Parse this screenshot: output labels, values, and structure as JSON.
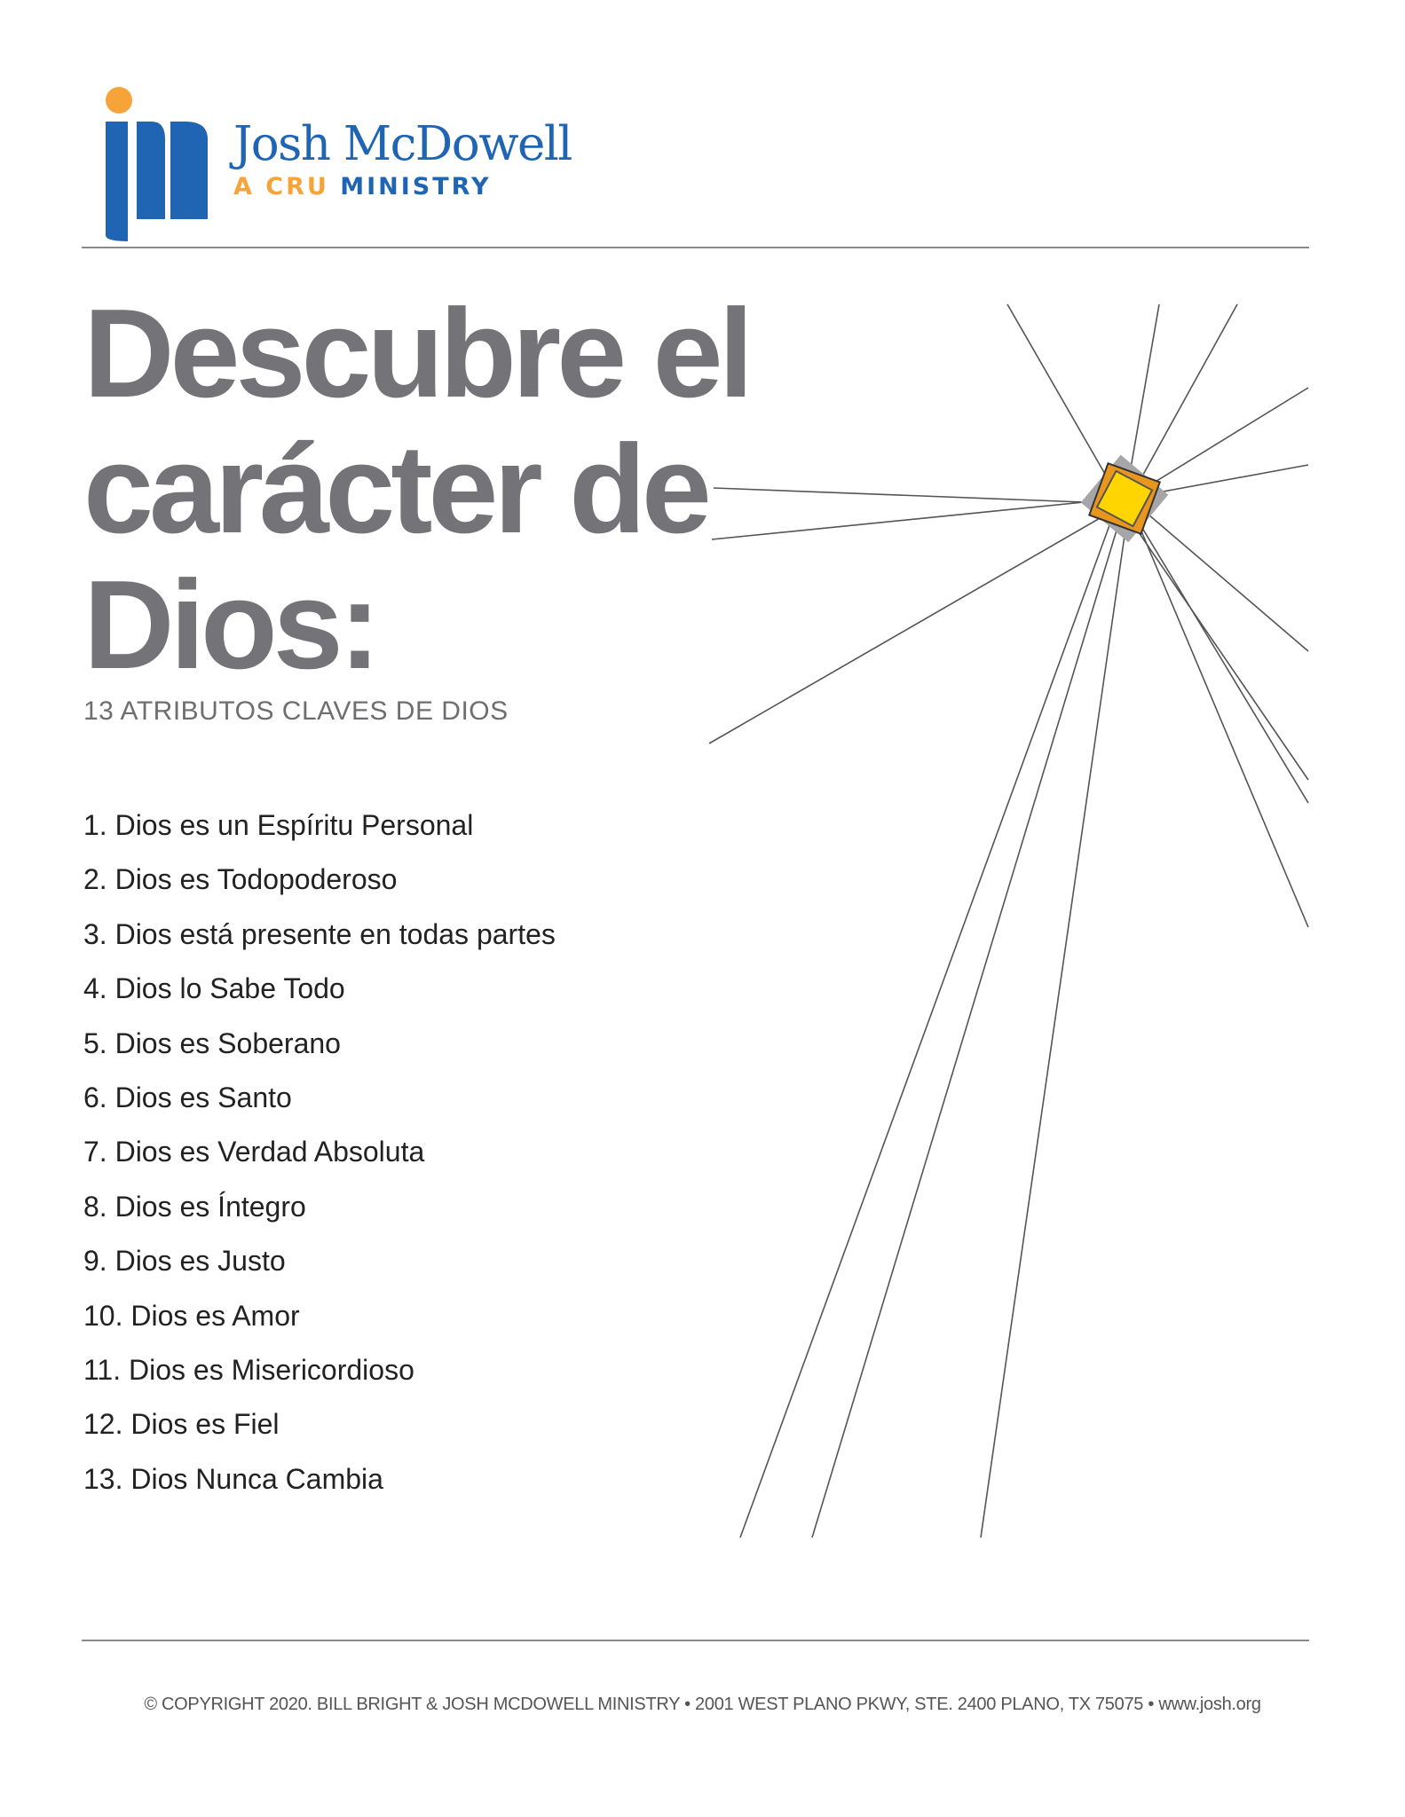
{
  "brand": {
    "name": "Josh McDowell",
    "tagline_part1": "A CRU",
    "tagline_part2": "MINISTRY",
    "colors": {
      "blue": "#1f65b3",
      "orange": "#f6a43a"
    }
  },
  "title": "Descubre el carácter de Dios:",
  "subtitle": "13 ATRIBUTOS CLAVES DE DIOS",
  "attributes": [
    "1. Dios es un Espíritu Personal",
    "2. Dios es Todopoderoso",
    "3. Dios está presente en todas partes",
    "4. Dios lo Sabe Todo",
    "5. Dios es Soberano",
    "6. Dios es Santo",
    "7. Dios es Verdad Absoluta",
    "8. Dios es Íntegro",
    "9. Dios es Justo",
    "10. Dios es Amor",
    "11. Dios es Misericordioso",
    "12. Dios es Fiel",
    "13. Dios Nunca Cambia"
  ],
  "illustration": {
    "colors": {
      "center": "#ffd500",
      "frame": "#e8961e",
      "shadow": "#a6a6a8",
      "rays": "#555555"
    }
  },
  "footer": "© COPYRIGHT 2020. BILL BRIGHT & JOSH MCDOWELL MINISTRY • 2001 WEST PLANO PKWY, STE. 2400 PLANO, TX 75075 • www.josh.org"
}
